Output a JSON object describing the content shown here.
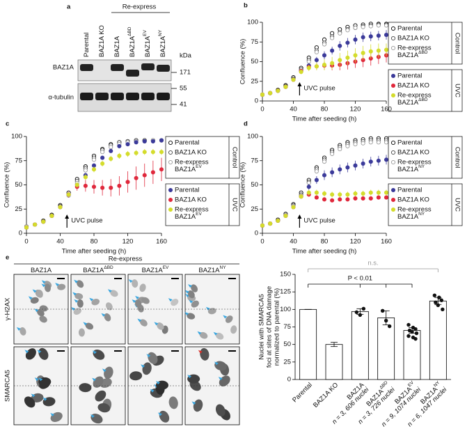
{
  "blot": {
    "panel": "a",
    "group_label": "Re-express",
    "lanes": [
      "Parental",
      "BAZ1A KO",
      "BAZ1A",
      "BAZ1A",
      "BAZ1A",
      "BAZ1A"
    ],
    "lane_sups": [
      null,
      null,
      null,
      "ΔBD",
      "EV",
      "NY"
    ],
    "unit": "kDa",
    "rows": [
      "BAZ1A",
      "α-tubulin"
    ],
    "markers": [
      171,
      55,
      41
    ]
  },
  "microscopy": {
    "panel": "e",
    "group_label": "Re-express",
    "columns": [
      "BAZ1A",
      "BAZ1A",
      "BAZ1A",
      "BAZ1A"
    ],
    "column_sups": [
      null,
      "ΔBD",
      "EV",
      "NY"
    ],
    "rows": [
      "γ-H2AX",
      "SMARCA5"
    ]
  },
  "chart_data": [
    {
      "type": "scatter",
      "panel": "b",
      "x_label": "Time after seeding (h)",
      "y_label": "Confluence (%)",
      "annotation": "UVC pulse",
      "x": [
        0,
        10,
        20,
        30,
        40,
        50,
        60,
        70,
        80,
        90,
        100,
        110,
        120,
        130,
        140,
        150,
        160
      ],
      "xlim": [
        0,
        160
      ],
      "xticks": [
        0,
        40,
        80,
        120,
        160
      ],
      "ylim": [
        0,
        100
      ],
      "yticks": [
        0,
        25,
        50,
        75,
        100
      ],
      "legend_groups": [
        "Control",
        "UVC"
      ],
      "series": [
        {
          "name": "Parental",
          "color": "#000000",
          "marker": "open",
          "values": [
            8,
            10,
            14,
            20,
            30,
            42,
            55,
            68,
            78,
            86,
            91,
            94,
            96,
            97,
            98,
            98,
            98
          ]
        },
        {
          "name": "BAZ1A KO",
          "color": "#444444",
          "marker": "open",
          "values": [
            8,
            10,
            13,
            19,
            28,
            40,
            52,
            64,
            74,
            82,
            87,
            91,
            93,
            95,
            96,
            97,
            97
          ]
        },
        {
          "name": "Re-express",
          "name_line2": "BAZ1A",
          "name_sup": "ΔBD",
          "color": "#999999",
          "marker": "open",
          "values": [
            8,
            10,
            13,
            18,
            27,
            38,
            50,
            62,
            72,
            80,
            86,
            90,
            93,
            94,
            95,
            96,
            96
          ]
        },
        {
          "name": "Parental",
          "color": "#3b3a9a",
          "marker": "filled",
          "values": [
            8,
            10,
            13,
            18,
            27,
            38,
            45,
            52,
            58,
            64,
            70,
            74,
            78,
            81,
            82,
            83,
            84
          ],
          "errors": [
            1,
            1,
            1,
            1,
            2,
            2,
            3,
            4,
            5,
            5,
            6,
            6,
            6,
            6,
            6,
            6,
            6
          ]
        },
        {
          "name": "BAZ1A KO",
          "color": "#e0283c",
          "marker": "filled",
          "values": [
            8,
            10,
            13,
            18,
            27,
            38,
            43,
            44,
            45,
            45,
            46,
            48,
            50,
            52,
            54,
            56,
            58
          ],
          "errors": [
            1,
            1,
            1,
            1,
            2,
            2,
            3,
            4,
            5,
            6,
            7,
            8,
            8,
            9,
            9,
            9,
            9
          ]
        },
        {
          "name": "Re-express",
          "name_line2": "BAZ1A",
          "name_sup": "ΔBD",
          "color": "#d4dc2c",
          "marker": "filled",
          "values": [
            8,
            10,
            13,
            18,
            27,
            37,
            42,
            44,
            46,
            48,
            52,
            55,
            58,
            61,
            63,
            64,
            65
          ],
          "errors": [
            1,
            1,
            1,
            1,
            2,
            3,
            4,
            5,
            7,
            8,
            9,
            9,
            9,
            9,
            9,
            9,
            8
          ]
        }
      ]
    },
    {
      "type": "scatter",
      "panel": "c",
      "x_label": "Time after seeding (h)",
      "y_label": "Confluence (%)",
      "annotation": "UVC pulse",
      "x": [
        0,
        10,
        20,
        30,
        40,
        50,
        60,
        70,
        80,
        90,
        100,
        110,
        120,
        130,
        140,
        150,
        160
      ],
      "xlim": [
        0,
        160
      ],
      "xticks": [
        0,
        40,
        80,
        120,
        160
      ],
      "ylim": [
        0,
        100
      ],
      "yticks": [
        0,
        25,
        50,
        75,
        100
      ],
      "legend_groups": [
        "Control",
        "UVC"
      ],
      "series": [
        {
          "name": "Parental",
          "color": "#000000",
          "marker": "open",
          "values": [
            7,
            9,
            13,
            19,
            29,
            42,
            56,
            69,
            80,
            87,
            92,
            94,
            95,
            96,
            96,
            96,
            96
          ]
        },
        {
          "name": "BAZ1A KO",
          "color": "#444444",
          "marker": "open",
          "values": [
            7,
            9,
            12,
            18,
            28,
            40,
            54,
            67,
            78,
            86,
            91,
            94,
            95,
            96,
            96,
            96,
            96
          ]
        },
        {
          "name": "Re-express",
          "name_line2": "BAZ1A",
          "name_sup": "EV",
          "color": "#999999",
          "marker": "open",
          "values": [
            7,
            9,
            12,
            18,
            27,
            39,
            52,
            65,
            76,
            84,
            89,
            92,
            94,
            95,
            95,
            96,
            96
          ]
        },
        {
          "name": "Parental",
          "color": "#3b3a9a",
          "marker": "filled",
          "values": [
            6,
            9,
            12,
            18,
            27,
            40,
            50,
            60,
            70,
            78,
            85,
            90,
            92,
            94,
            95,
            95,
            96
          ],
          "errors": [
            1,
            1,
            1,
            1,
            1,
            2,
            2,
            2,
            2,
            2,
            2,
            2,
            2,
            2,
            1,
            1,
            1
          ]
        },
        {
          "name": "BAZ1A KO",
          "color": "#e0283c",
          "marker": "filled",
          "values": [
            6,
            9,
            12,
            18,
            27,
            40,
            48,
            49,
            48,
            47,
            47,
            49,
            53,
            57,
            60,
            63,
            66
          ],
          "errors": [
            1,
            1,
            1,
            1,
            2,
            3,
            4,
            6,
            7,
            8,
            9,
            10,
            11,
            12,
            12,
            12,
            12
          ]
        },
        {
          "name": "Re-express",
          "name_line2": "BAZ1A",
          "name_sup": "EV",
          "color": "#d4dc2c",
          "marker": "filled",
          "values": [
            6,
            9,
            12,
            18,
            27,
            40,
            50,
            58,
            66,
            72,
            77,
            80,
            82,
            83,
            84,
            84,
            84
          ],
          "errors": [
            1,
            1,
            1,
            1,
            2,
            2,
            3,
            3,
            3,
            3,
            3,
            3,
            3,
            3,
            3,
            3,
            3
          ]
        }
      ]
    },
    {
      "type": "scatter",
      "panel": "d",
      "x_label": "Time after seeding (h)",
      "y_label": "Confluence (%)",
      "annotation": "UVC pulse",
      "x": [
        0,
        10,
        20,
        30,
        40,
        50,
        60,
        70,
        80,
        90,
        100,
        110,
        120,
        130,
        140,
        150,
        160
      ],
      "xlim": [
        0,
        160
      ],
      "xticks": [
        0,
        40,
        80,
        120,
        160
      ],
      "ylim": [
        0,
        100
      ],
      "yticks": [
        0,
        25,
        50,
        75,
        100
      ],
      "legend_groups": [
        "Control",
        "UVC"
      ],
      "series": [
        {
          "name": "Parental",
          "color": "#000000",
          "marker": "open",
          "values": [
            8,
            10,
            14,
            20,
            30,
            42,
            55,
            68,
            78,
            86,
            91,
            94,
            96,
            97,
            98,
            98,
            98
          ]
        },
        {
          "name": "BAZ1A KO",
          "color": "#444444",
          "marker": "open",
          "values": [
            8,
            10,
            13,
            19,
            29,
            40,
            53,
            66,
            76,
            84,
            89,
            92,
            94,
            95,
            96,
            96,
            96
          ]
        },
        {
          "name": "Re-express",
          "name_line2": "BAZ1A",
          "name_sup": "NY",
          "color": "#999999",
          "marker": "open",
          "values": [
            8,
            10,
            13,
            19,
            28,
            39,
            52,
            64,
            74,
            82,
            87,
            90,
            92,
            93,
            94,
            94,
            94
          ]
        },
        {
          "name": "Parental",
          "color": "#3b3a9a",
          "marker": "filled",
          "values": [
            8,
            10,
            13,
            18,
            27,
            38,
            48,
            55,
            60,
            63,
            66,
            68,
            70,
            72,
            74,
            75,
            76
          ],
          "errors": [
            1,
            1,
            1,
            1,
            2,
            2,
            3,
            4,
            5,
            5,
            5,
            5,
            5,
            5,
            5,
            5,
            5
          ]
        },
        {
          "name": "BAZ1A KO",
          "color": "#e0283c",
          "marker": "filled",
          "values": [
            8,
            10,
            13,
            18,
            27,
            38,
            40,
            37,
            35,
            34,
            35,
            35,
            36,
            36,
            36,
            37,
            37
          ],
          "errors": [
            1,
            1,
            1,
            1,
            1,
            2,
            2,
            2,
            2,
            2,
            2,
            2,
            2,
            2,
            2,
            2,
            2
          ]
        },
        {
          "name": "Re-express",
          "name_line2": "BAZ1A",
          "name_sup": "NY",
          "color": "#d4dc2c",
          "marker": "filled",
          "values": [
            8,
            10,
            13,
            18,
            27,
            38,
            42,
            42,
            41,
            40,
            40,
            40,
            41,
            41,
            42,
            42,
            42
          ],
          "errors": [
            1,
            1,
            1,
            1,
            2,
            2,
            3,
            3,
            3,
            3,
            3,
            3,
            3,
            3,
            3,
            3,
            3
          ]
        }
      ]
    },
    {
      "type": "bar",
      "y_label": [
        "Nuclei with SMARCA5",
        "foci at sites of DNA damage",
        "normalized to parental (%)"
      ],
      "categories": [
        "Parental",
        "BAZ1A KO",
        "BAZ1A",
        "BAZ1A",
        "BAZ1A",
        "BAZ1A"
      ],
      "category_sups": [
        null,
        null,
        null,
        "ΔBD",
        "EV",
        "NY"
      ],
      "category_notes": [
        null,
        null,
        "n = 3, 606 nuclei",
        "n = 3, 726 nuclei",
        "n = 9, 1074 nuclei",
        "n = 6, 1047 nuclei"
      ],
      "values": [
        100,
        50,
        97,
        88,
        70,
        112
      ],
      "errors": [
        0,
        3,
        4,
        10,
        4,
        5
      ],
      "points": [
        null,
        null,
        [
          96,
          92,
          101
        ],
        [
          98,
          84,
          76
        ],
        [
          78,
          74,
          72,
          70,
          68,
          66,
          62,
          60,
          58
        ],
        [
          120,
          117,
          113,
          110,
          106,
          100
        ]
      ],
      "color": "#ffffff",
      "ylim": [
        0,
        150
      ],
      "yticks": [
        0,
        25,
        50,
        75,
        100,
        125,
        150
      ],
      "annotations": [
        "n.s.",
        "P < 0.01"
      ]
    }
  ]
}
